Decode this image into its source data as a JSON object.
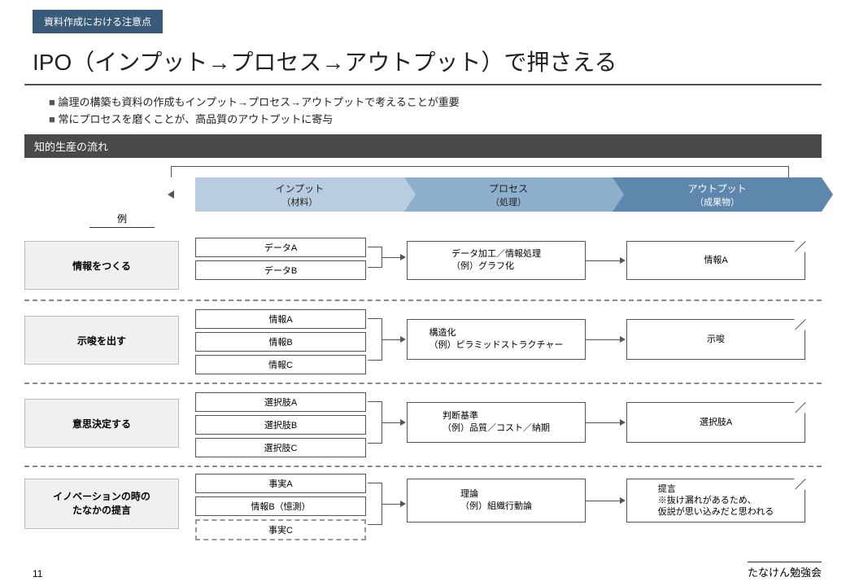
{
  "badge": "資料作成における注意点",
  "title": "IPO（インプット→プロセス→アウトプット）で押さえる",
  "bullets": [
    "論理の構築も資料の作成もインプット→プロセス→アウトプットで考えることが重要",
    "常にプロセスを磨くことが、高品質のアウトプットに寄与"
  ],
  "section": "知的生産の流れ",
  "example_label": "例",
  "headers": [
    {
      "t": "インプット",
      "s": "（材料）"
    },
    {
      "t": "プロセス",
      "s": "（処理）"
    },
    {
      "t": "アウトプット",
      "s": "（成果物）"
    }
  ],
  "rows": [
    {
      "label": "情報をつくる",
      "inputs": [
        "データA",
        "データB"
      ],
      "process": "データ加工／情報処理\n（例）グラフ化",
      "output": "情報A"
    },
    {
      "label": "示唆を出す",
      "inputs": [
        "情報A",
        "情報B",
        "情報C"
      ],
      "process": "構造化\n（例）ピラミッドストラクチャー",
      "output": "示唆"
    },
    {
      "label": "意思決定する",
      "inputs": [
        "選択肢A",
        "選択肢B",
        "選択肢C"
      ],
      "process": "判断基準\n（例）品質／コスト／納期",
      "output": "選択肢A"
    },
    {
      "label": "イノベーションの時の\nたなかの提言",
      "inputs": [
        "事実A",
        "情報B（憶測）",
        "事実C"
      ],
      "dashed_last": true,
      "process": "理論\n（例）組織行動論",
      "output": "提言\n※抜け漏れがあるため、\n仮説が思い込みだと思われる"
    }
  ],
  "page_num": "11",
  "footer": "たなけん勉強会",
  "colors": {
    "badge": "#3a5a7a",
    "h1": "#b9cde0",
    "h2": "#8fb0cc",
    "h3": "#5d87ad",
    "bar": "#4a4a4a"
  }
}
